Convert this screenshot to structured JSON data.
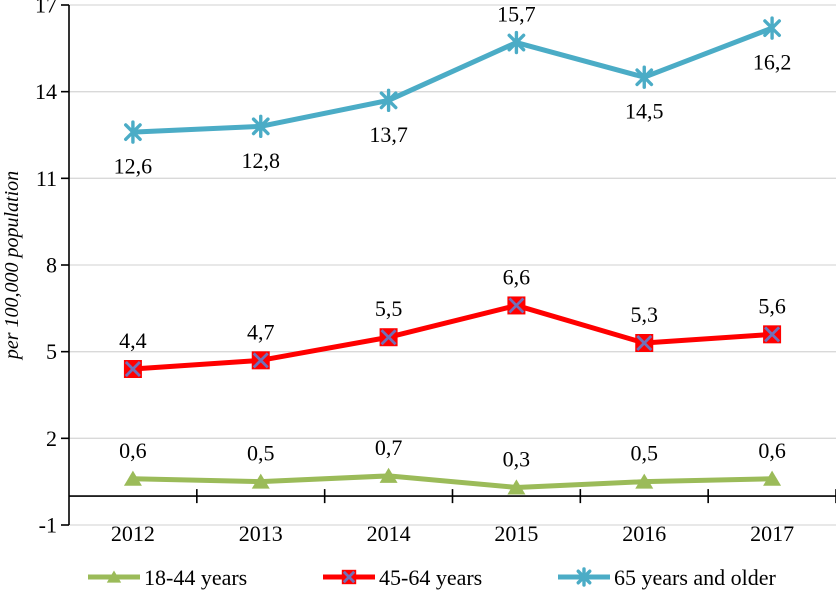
{
  "chart_data": {
    "type": "line",
    "title": "",
    "ylabel": "per 100,000 population",
    "xlabel": "",
    "categories": [
      "2012",
      "2013",
      "2014",
      "2015",
      "2016",
      "2017"
    ],
    "ylim": [
      -1,
      17
    ],
    "yticks": [
      -1,
      2,
      5,
      8,
      11,
      14,
      17
    ],
    "grid": true,
    "legend_position": "bottom",
    "decimal_separator": ",",
    "colors": {
      "grid": "#d9d9d9",
      "axis": "#000000",
      "text": "#000000",
      "background": "#ffffff"
    },
    "series": [
      {
        "name": "18-44 years",
        "color": "#9bbb59",
        "marker": "triangle",
        "values": [
          0.6,
          0.5,
          0.7,
          0.3,
          0.5,
          0.6
        ],
        "labels": [
          "0,6",
          "0,5",
          "0,7",
          "0,3",
          "0,5",
          "0,6"
        ],
        "label_positions": [
          "above",
          "above",
          "above",
          "above",
          "above",
          "above"
        ]
      },
      {
        "name": "45-64 years",
        "color": "#ff0000",
        "marker": "square-x",
        "marker_x_color": "#7070b8",
        "values": [
          4.4,
          4.7,
          5.5,
          6.6,
          5.3,
          5.6
        ],
        "labels": [
          "4,4",
          "4,7",
          "5,5",
          "6,6",
          "5,3",
          "5,6"
        ],
        "label_positions": [
          "above",
          "above",
          "above",
          "above",
          "above",
          "above"
        ]
      },
      {
        "name": "65 years and older",
        "color": "#4bacc6",
        "marker": "asterisk",
        "values": [
          12.6,
          12.8,
          13.7,
          15.7,
          14.5,
          16.2
        ],
        "labels": [
          "12,6",
          "12,8",
          "13,7",
          "15,7",
          "14,5",
          "16,2"
        ],
        "label_positions": [
          "below",
          "below",
          "below",
          "above",
          "below",
          "below"
        ]
      }
    ]
  }
}
